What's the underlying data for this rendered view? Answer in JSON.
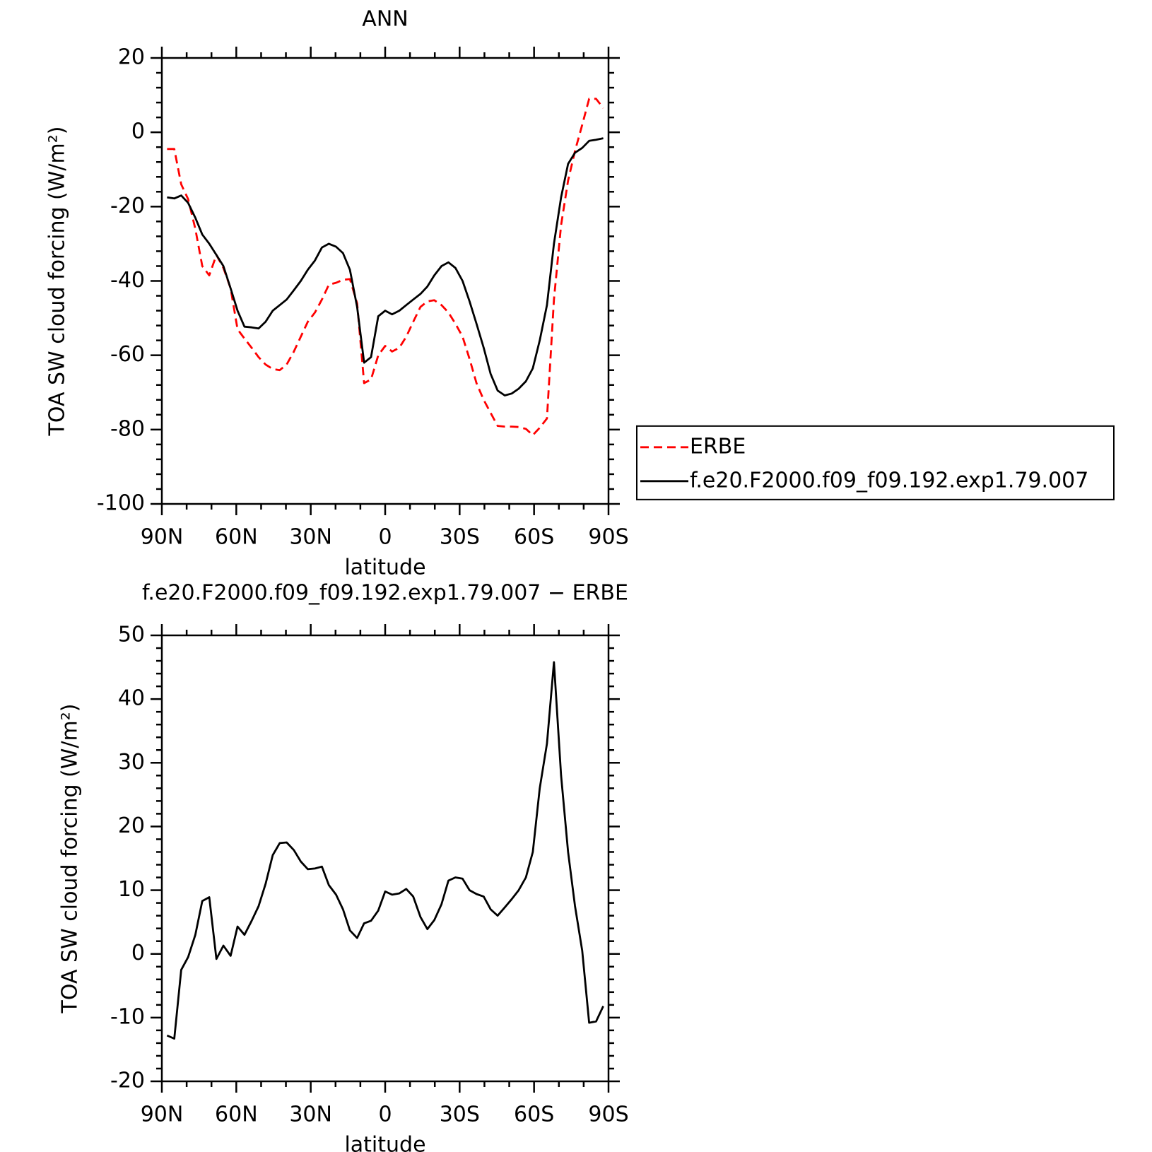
{
  "chart_data": [
    {
      "type": "line",
      "title": "ANN",
      "xlabel": "latitude",
      "ylabel": "TOA SW cloud forcing (W/m²)",
      "x": [
        87.9,
        85.0,
        82.2,
        79.4,
        76.5,
        73.7,
        70.9,
        68.0,
        65.2,
        62.3,
        59.5,
        56.7,
        53.8,
        51.0,
        48.2,
        45.3,
        42.5,
        39.7,
        36.8,
        34.0,
        31.2,
        28.3,
        25.5,
        22.7,
        19.8,
        17.0,
        14.2,
        11.3,
        8.5,
        5.7,
        2.8,
        0,
        -2.8,
        -5.7,
        -8.5,
        -11.3,
        -14.2,
        -17.0,
        -19.8,
        -22.7,
        -25.5,
        -28.3,
        -31.2,
        -34.0,
        -36.8,
        -39.7,
        -42.5,
        -45.3,
        -48.2,
        -51.0,
        -53.8,
        -56.7,
        -59.5,
        -62.3,
        -65.2,
        -68.0,
        -70.9,
        -73.7,
        -76.5,
        -79.4,
        -82.2,
        -85.0,
        -87.9
      ],
      "series": [
        {
          "name": "ERBE",
          "color": "#ff0000",
          "linestyle": "dashed",
          "values": [
            -4.5,
            -4.5,
            -14,
            -18,
            -26,
            -36,
            -38.5,
            -33,
            -36.5,
            -42,
            -53,
            -55.5,
            -58,
            -60.5,
            -62.5,
            -63.7,
            -64,
            -62.5,
            -59,
            -55,
            -51,
            -48.5,
            -45,
            -41,
            -40.5,
            -39.7,
            -39.5,
            -46,
            -67.5,
            -66.5,
            -60,
            -57.5,
            -59,
            -58,
            -55,
            -51,
            -47,
            -45.5,
            -45.2,
            -46.5,
            -48.5,
            -51.5,
            -55,
            -61,
            -67.5,
            -72,
            -75.5,
            -79,
            -79.2,
            -79.2,
            -79.3,
            -79.8,
            -81.5,
            -79.5,
            -77,
            -45,
            -25,
            -13,
            -5,
            2,
            9,
            9,
            6.5
          ]
        },
        {
          "name": "f.e20.F2000.f09_f09.192.exp1.79.007",
          "color": "#000000",
          "linestyle": "solid",
          "values": [
            -17.5,
            -17.8,
            -17,
            -19,
            -23,
            -27.5,
            -30,
            -33,
            -36,
            -42,
            -48,
            -52.3,
            -52.5,
            -52.8,
            -51,
            -48,
            -46.5,
            -45,
            -42.5,
            -40,
            -37,
            -34.5,
            -31,
            -30,
            -30.8,
            -32.5,
            -37,
            -47,
            -62,
            -60.5,
            -49.5,
            -48,
            -49,
            -48,
            -46.5,
            -45,
            -43.5,
            -41.5,
            -38.5,
            -36,
            -35,
            -36.5,
            -40,
            -45.5,
            -51.5,
            -58,
            -65,
            -69.5,
            -70.8,
            -70.3,
            -69,
            -67,
            -63.5,
            -56,
            -46.5,
            -30,
            -17.5,
            -8.5,
            -5.5,
            -4.2,
            -2.3,
            -2,
            -1.6
          ]
        }
      ],
      "xlim": [
        90,
        -90
      ],
      "xticks": [
        {
          "value": 90,
          "label": "90N"
        },
        {
          "value": 60,
          "label": "60N"
        },
        {
          "value": 30,
          "label": "30N"
        },
        0,
        {
          "value": -30,
          "label": "30S"
        },
        {
          "value": -60,
          "label": "60S"
        },
        {
          "value": -90,
          "label": "90S"
        }
      ],
      "ylim": [
        -100,
        20
      ],
      "yticks": [
        -100,
        -80,
        -60,
        -40,
        -20,
        0,
        20
      ],
      "legend": "right"
    },
    {
      "type": "line",
      "title": "f.e20.F2000.f09_f09.192.exp1.79.007 − ERBE",
      "xlabel": "latitude",
      "ylabel": "TOA SW cloud forcing (W/m²)",
      "x": [
        87.9,
        85.0,
        82.2,
        79.4,
        76.5,
        73.7,
        70.9,
        68.0,
        65.2,
        62.3,
        59.5,
        56.7,
        53.8,
        51.0,
        48.2,
        45.3,
        42.5,
        39.7,
        36.8,
        34.0,
        31.2,
        28.3,
        25.5,
        22.7,
        19.8,
        17.0,
        14.2,
        11.3,
        8.5,
        5.7,
        2.8,
        0,
        -2.8,
        -5.7,
        -8.5,
        -11.3,
        -14.2,
        -17.0,
        -19.8,
        -22.7,
        -25.5,
        -28.3,
        -31.2,
        -34.0,
        -36.8,
        -39.7,
        -42.5,
        -45.3,
        -48.2,
        -51.0,
        -53.8,
        -56.7,
        -59.5,
        -62.3,
        -65.2,
        -68.0,
        -70.9,
        -73.7,
        -76.5,
        -79.4,
        -82.2,
        -85.0,
        -87.9
      ],
      "series": [
        {
          "color": "#000000",
          "linestyle": "solid",
          "values": [
            -12.8,
            -13.3,
            -2.5,
            -0.5,
            3,
            8.3,
            8.9,
            -0.8,
            1.3,
            -0.3,
            4.3,
            3,
            5.2,
            7.5,
            11,
            15.5,
            17.4,
            17.5,
            16.3,
            14.5,
            13.3,
            13.4,
            13.7,
            10.8,
            9.3,
            7,
            3.7,
            2.5,
            4.8,
            5.2,
            6.8,
            9.8,
            9.3,
            9.5,
            10.2,
            9,
            5.8,
            3.9,
            5.3,
            7.8,
            11.5,
            12,
            11.8,
            10,
            9.4,
            9,
            7,
            6,
            7.3,
            8.6,
            10,
            12,
            16,
            26,
            33,
            45.8,
            28,
            16,
            7.5,
            0.5,
            -10.8,
            -10.6,
            -8.2
          ]
        }
      ],
      "xlim": [
        90,
        -90
      ],
      "xticks": [
        {
          "value": 90,
          "label": "90N"
        },
        {
          "value": 60,
          "label": "60N"
        },
        {
          "value": 30,
          "label": "30N"
        },
        0,
        {
          "value": -30,
          "label": "30S"
        },
        {
          "value": -60,
          "label": "60S"
        },
        {
          "value": -90,
          "label": "90S"
        }
      ],
      "ylim": [
        -20,
        50
      ],
      "yticks": [
        -20,
        -10,
        0,
        10,
        20,
        30,
        40,
        50
      ]
    }
  ]
}
